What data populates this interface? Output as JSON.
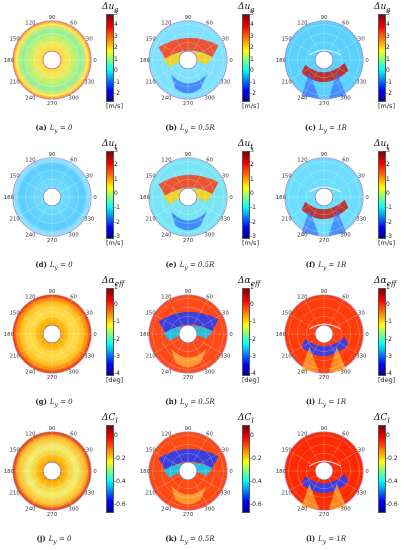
{
  "figure": {
    "angle_ticks": [
      "90",
      "60",
      "30",
      "0",
      "330",
      "300",
      "270",
      "240",
      "210",
      "180",
      "150",
      "120"
    ],
    "rows": [
      {
        "quantity": "Δu_a",
        "quantity_html": "Δu<sub>a</sub>",
        "unit": "[m/s]",
        "colorbar_ticks": [
          "5",
          "4",
          "3",
          "2",
          "1",
          "0",
          "-1",
          "-2"
        ],
        "colorbar_range": [
          -2.5,
          5
        ],
        "panels": [
          {
            "letter": "(a)",
            "condition": "L_y = 0",
            "condition_html": "L<sub>y</sub> = 0",
            "pattern": "rings"
          },
          {
            "letter": "(b)",
            "condition": "L_y = 0.5R",
            "condition_html": "L<sub>y</sub> = 0.5R",
            "pattern": "shifted"
          },
          {
            "letter": "(c)",
            "condition": "L_y = 1R",
            "condition_html": "L<sub>y</sub> = 1R",
            "pattern": "wake"
          }
        ]
      },
      {
        "quantity": "Δu_t",
        "quantity_html": "Δu<sub>t</sub>",
        "unit": "[m/s]",
        "colorbar_ticks": [
          "3",
          "2",
          "1",
          "0",
          "-1",
          "-2",
          "-3"
        ],
        "colorbar_range": [
          -3,
          3
        ],
        "panels": [
          {
            "letter": "(d)",
            "condition": "L_y = 0",
            "condition_html": "L<sub>y</sub> = 0",
            "pattern": "rings"
          },
          {
            "letter": "(e)",
            "condition": "L_y = 0.5R",
            "condition_html": "L<sub>y</sub> = 0.5R",
            "pattern": "shifted"
          },
          {
            "letter": "(f)",
            "condition": "L_y = 1R",
            "condition_html": "L<sub>y</sub> = 1R",
            "pattern": "wake"
          }
        ]
      },
      {
        "quantity": "Δα_eff",
        "quantity_html": "Δα<sub>eff</sub>",
        "unit": "[deg]",
        "colorbar_ticks": [
          "1",
          "0",
          "-1",
          "-2",
          "-3",
          "-4"
        ],
        "colorbar_range": [
          -4,
          1
        ],
        "panels": [
          {
            "letter": "(g)",
            "condition": "L_y = 0",
            "condition_html": "L<sub>y</sub> = 0",
            "pattern": "rings"
          },
          {
            "letter": "(h)",
            "condition": "L_y = 0.5R",
            "condition_html": "L<sub>y</sub> = 0.5R",
            "pattern": "shifted"
          },
          {
            "letter": "(i)",
            "condition": "L_y = 1R",
            "condition_html": "L<sub>y</sub> = 1R",
            "pattern": "wake"
          }
        ]
      },
      {
        "quantity": "ΔC_l",
        "quantity_html": "ΔC<sub>l</sub>",
        "unit": "",
        "colorbar_ticks": [
          "0",
          "-0.2",
          "-0.4",
          "-0.6"
        ],
        "colorbar_range": [
          -0.65,
          0.1
        ],
        "panels": [
          {
            "letter": "(j)",
            "condition": "L_y = 0",
            "condition_html": "L<sub>y</sub> = 0",
            "pattern": "rings"
          },
          {
            "letter": "(k)",
            "condition": "L_y = 0.5R",
            "condition_html": "L<sub>y</sub> = 0.5R",
            "pattern": "shifted"
          },
          {
            "letter": "(l)",
            "condition": "L_y = 1R",
            "condition_html": "L<sub>y</sub> = 1R",
            "pattern": "wake"
          }
        ]
      }
    ]
  },
  "chart_data": [
    {
      "type": "heatmap",
      "subplot": "(a)",
      "quantity": "Δu_a",
      "unit": "m/s",
      "colorbar_range": [
        -2.5,
        5
      ],
      "caption": "L_y = 0"
    },
    {
      "type": "heatmap",
      "subplot": "(b)",
      "quantity": "Δu_a",
      "unit": "m/s",
      "colorbar_range": [
        -2.5,
        5
      ],
      "caption": "L_y = 0.5R"
    },
    {
      "type": "heatmap",
      "subplot": "(c)",
      "quantity": "Δu_a",
      "unit": "m/s",
      "colorbar_range": [
        -2.5,
        5
      ],
      "caption": "L_y = 1R"
    },
    {
      "type": "heatmap",
      "subplot": "(d)",
      "quantity": "Δu_t",
      "unit": "m/s",
      "colorbar_range": [
        -3,
        3
      ],
      "caption": "L_y = 0"
    },
    {
      "type": "heatmap",
      "subplot": "(e)",
      "quantity": "Δu_t",
      "unit": "m/s",
      "colorbar_range": [
        -3,
        3
      ],
      "caption": "L_y = 0.5R"
    },
    {
      "type": "heatmap",
      "subplot": "(f)",
      "quantity": "Δu_t",
      "unit": "m/s",
      "colorbar_range": [
        -3,
        3
      ],
      "caption": "L_y = 1R"
    },
    {
      "type": "heatmap",
      "subplot": "(g)",
      "quantity": "Δα_eff",
      "unit": "deg",
      "colorbar_range": [
        -4,
        1
      ],
      "caption": "L_y = 0"
    },
    {
      "type": "heatmap",
      "subplot": "(h)",
      "quantity": "Δα_eff",
      "unit": "deg",
      "colorbar_range": [
        -4,
        1
      ],
      "caption": "L_y = 0.5R"
    },
    {
      "type": "heatmap",
      "subplot": "(i)",
      "quantity": "Δα_eff",
      "unit": "deg",
      "colorbar_range": [
        -4,
        1
      ],
      "caption": "L_y = 1R"
    },
    {
      "type": "heatmap",
      "subplot": "(j)",
      "quantity": "ΔC_l",
      "unit": "",
      "colorbar_range": [
        -0.65,
        0.1
      ],
      "caption": "L_y = 0"
    },
    {
      "type": "heatmap",
      "subplot": "(k)",
      "quantity": "ΔC_l",
      "unit": "",
      "colorbar_range": [
        -0.65,
        0.1
      ],
      "caption": "L_y = 0.5R"
    },
    {
      "type": "heatmap",
      "subplot": "(l)",
      "quantity": "ΔC_l",
      "unit": "",
      "colorbar_range": [
        -0.65,
        0.1
      ],
      "caption": "L_y = 1R"
    }
  ]
}
